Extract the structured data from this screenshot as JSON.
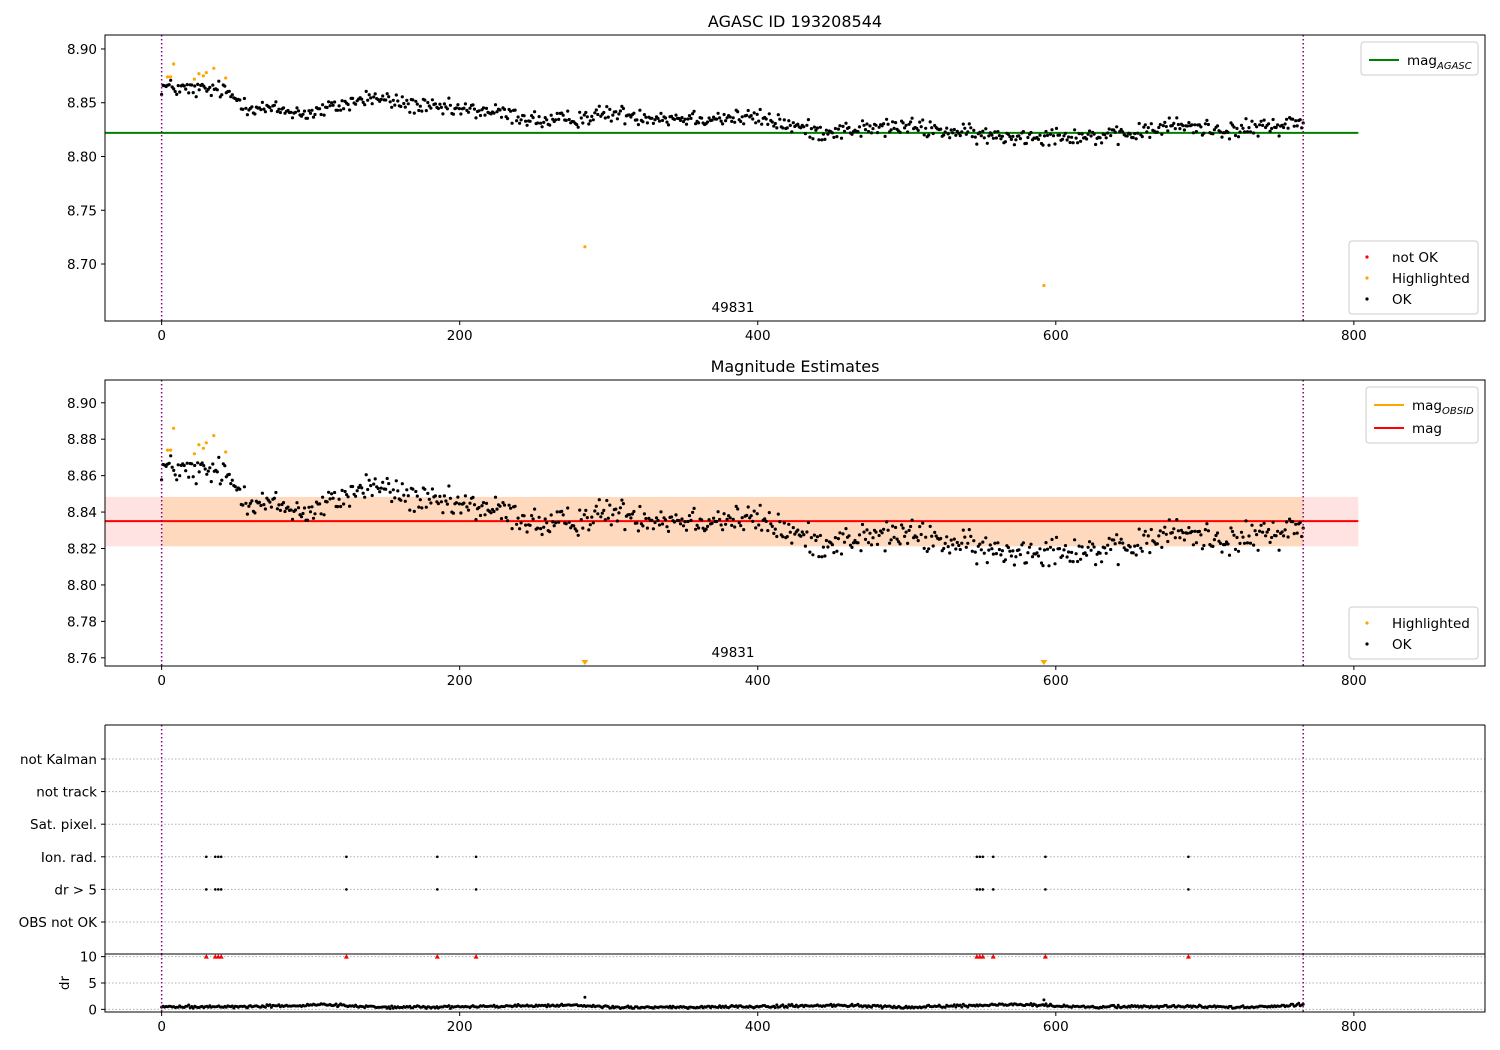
{
  "figure": {
    "width": 1500,
    "height": 1050
  },
  "chart_data": [
    {
      "type": "scatter",
      "panel": "agasc",
      "title": "AGASC ID 193208544",
      "xlim": [
        -38,
        888
      ],
      "ylim": [
        8.647,
        8.913
      ],
      "xticks": [
        0,
        200,
        400,
        600,
        800
      ],
      "yticks": [
        8.7,
        8.75,
        8.8,
        8.85,
        8.9
      ],
      "ytick_decimals": 2,
      "annotation": "49831",
      "obs_boundaries": [
        0,
        766
      ],
      "hline": {
        "name": "mag_AGASC",
        "y": 8.822,
        "x_range": [
          -38,
          803
        ],
        "color": "#008000"
      },
      "legend_lines": [
        {
          "base": "mag",
          "sub": "AGASC",
          "color": "#008000"
        }
      ],
      "legend_points": [
        {
          "label": "not OK",
          "color": "#ff0000"
        },
        {
          "label": "Highlighted",
          "color": "#ffa500"
        },
        {
          "label": "OK",
          "color": "#000000"
        }
      ],
      "series": [
        {
          "name": "OK",
          "color": "#000000",
          "trend": [
            [
              0,
              8.865
            ],
            [
              20,
              8.862
            ],
            [
              40,
              8.862
            ],
            [
              60,
              8.846
            ],
            [
              100,
              8.84
            ],
            [
              140,
              8.855
            ],
            [
              180,
              8.845
            ],
            [
              220,
              8.842
            ],
            [
              260,
              8.832
            ],
            [
              300,
              8.84
            ],
            [
              340,
              8.836
            ],
            [
              400,
              8.836
            ],
            [
              440,
              8.823
            ],
            [
              500,
              8.828
            ],
            [
              560,
              8.818
            ],
            [
              600,
              8.82
            ],
            [
              640,
              8.818
            ],
            [
              680,
              8.829
            ],
            [
              720,
              8.824
            ],
            [
              766,
              8.832
            ]
          ],
          "spread": 0.008,
          "count": 760
        },
        {
          "name": "Highlighted",
          "color": "#ffa500",
          "x": [
            4,
            6,
            8,
            22,
            25,
            28,
            30,
            35,
            43,
            284,
            592
          ],
          "y": [
            8.874,
            8.874,
            8.886,
            8.872,
            8.877,
            8.875,
            8.878,
            8.882,
            8.873,
            8.716,
            8.68
          ]
        },
        {
          "name": "not OK",
          "color": "#ff0000",
          "x": [],
          "y": []
        }
      ]
    },
    {
      "type": "scatter",
      "panel": "estimates",
      "title": "Magnitude Estimates",
      "xlim": [
        -38,
        888
      ],
      "ylim": [
        8.7555,
        8.9125
      ],
      "xticks": [
        0,
        200,
        400,
        600,
        800
      ],
      "yticks": [
        8.76,
        8.78,
        8.8,
        8.82,
        8.84,
        8.86,
        8.88,
        8.9
      ],
      "ytick_decimals": 2,
      "annotation": "49831",
      "obs_boundaries": [
        0,
        766
      ],
      "hline": {
        "name": "mag",
        "y": 8.835,
        "x_range": [
          -38,
          803
        ],
        "color": "#ff0000"
      },
      "bands": [
        {
          "y": [
            8.8212,
            8.8483
          ],
          "x_range": [
            -38,
            803
          ],
          "color": "#ff0000",
          "opacity": 0.11
        },
        {
          "y": [
            8.8212,
            8.8483
          ],
          "x_range": [
            0,
            766
          ],
          "color": "#ffa500",
          "opacity": 0.16
        }
      ],
      "legend_lines": [
        {
          "base": "mag",
          "sub": "OBSID",
          "color": "#ffa500"
        },
        {
          "base": "mag",
          "sub": "",
          "color": "#ff0000"
        }
      ],
      "legend_points": [
        {
          "label": "Highlighted",
          "color": "#ffa500"
        },
        {
          "label": "OK",
          "color": "#000000"
        }
      ],
      "lower_markers": [
        284,
        592
      ],
      "series": [
        {
          "name": "OK",
          "color": "#000000",
          "trend": [
            [
              0,
              8.865
            ],
            [
              20,
              8.862
            ],
            [
              40,
              8.862
            ],
            [
              60,
              8.846
            ],
            [
              100,
              8.84
            ],
            [
              140,
              8.855
            ],
            [
              180,
              8.845
            ],
            [
              220,
              8.842
            ],
            [
              260,
              8.832
            ],
            [
              300,
              8.84
            ],
            [
              340,
              8.836
            ],
            [
              400,
              8.836
            ],
            [
              440,
              8.823
            ],
            [
              500,
              8.828
            ],
            [
              560,
              8.818
            ],
            [
              600,
              8.82
            ],
            [
              640,
              8.818
            ],
            [
              680,
              8.829
            ],
            [
              720,
              8.824
            ],
            [
              766,
              8.832
            ]
          ],
          "spread": 0.008,
          "count": 760
        },
        {
          "name": "Highlighted",
          "color": "#ffa500",
          "x": [
            4,
            6,
            8,
            22,
            25,
            28,
            30,
            35,
            43
          ],
          "y": [
            8.874,
            8.874,
            8.886,
            8.872,
            8.877,
            8.875,
            8.878,
            8.882,
            8.873
          ]
        }
      ]
    },
    {
      "type": "scatter",
      "panel": "flags",
      "xlim": [
        -38,
        888
      ],
      "categories": [
        "not Kalman",
        "not track",
        "Sat. pixel.",
        "Ion. rad.",
        "dr > 5",
        "OBS not OK"
      ],
      "obs_boundaries": [
        0,
        766
      ],
      "series": [
        {
          "name": "Ion. rad.",
          "color": "#000000",
          "x": [
            30,
            36,
            38,
            40,
            124,
            185,
            211,
            547,
            549,
            551,
            558,
            593,
            689
          ]
        },
        {
          "name": "dr > 5",
          "color": "#000000",
          "x": [
            30,
            36,
            38,
            40,
            124,
            185,
            211,
            547,
            549,
            551,
            558,
            593,
            689
          ]
        }
      ]
    },
    {
      "type": "scatter",
      "panel": "dr",
      "ylabel": "dr",
      "xlim": [
        -38,
        888
      ],
      "ylim": [
        -0.5,
        10.5
      ],
      "xticks": [
        0,
        200,
        400,
        600,
        800
      ],
      "yticks": [
        0,
        5,
        10
      ],
      "ytick_decimals": 0,
      "obs_boundaries": [
        0,
        766
      ],
      "limit_line": 10,
      "clipped_markers": {
        "color": "#ff0000",
        "x": [
          30,
          36,
          38,
          40,
          124,
          185,
          211,
          547,
          549,
          551,
          558,
          593,
          689
        ]
      },
      "series": [
        {
          "name": "dr",
          "color": "#000000",
          "trend": [
            [
              0,
              0.5
            ],
            [
              60,
              0.5
            ],
            [
              110,
              0.9
            ],
            [
              150,
              0.4
            ],
            [
              200,
              0.5
            ],
            [
              280,
              0.8
            ],
            [
              300,
              0.4
            ],
            [
              400,
              0.5
            ],
            [
              450,
              0.8
            ],
            [
              500,
              0.4
            ],
            [
              580,
              0.9
            ],
            [
              620,
              0.4
            ],
            [
              660,
              0.6
            ],
            [
              700,
              0.5
            ],
            [
              730,
              0.4
            ],
            [
              766,
              0.9
            ]
          ],
          "spread": 0.25,
          "count": 760,
          "extra_x": [
            284,
            592
          ],
          "extra_y": [
            2.3,
            1.8
          ]
        }
      ]
    }
  ]
}
